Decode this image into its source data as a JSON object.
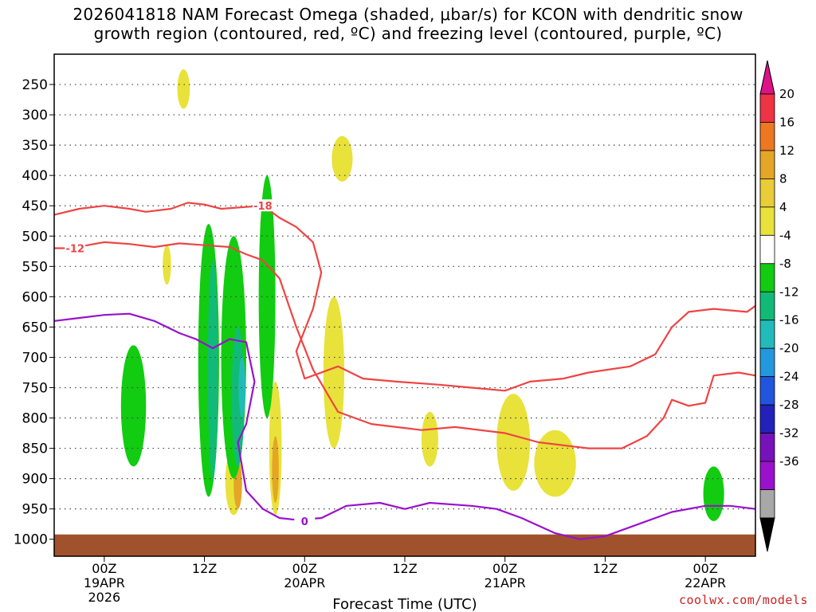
{
  "title_line1": "2026041818 NAM Forecast Omega (shaded, μbar/s) for KCON with dendritic snow",
  "title_line2": "growth region (contoured, red, ºC) and freezing level (contoured, purple, ºC)",
  "credit": "coolwx.com/models",
  "chart_data": {
    "type": "heatmap",
    "xlabel": "Forecast Time (UTC)",
    "ylabel": "",
    "y_axis": {
      "reversed": true,
      "ticks": [
        250,
        300,
        350,
        400,
        450,
        500,
        550,
        600,
        650,
        700,
        750,
        800,
        850,
        900,
        950,
        1000
      ]
    },
    "x_axis": {
      "start_hour": -6,
      "end_hour": 78,
      "ticks": [
        {
          "hour": 0,
          "labels": [
            "00Z",
            "19APR",
            "2026"
          ]
        },
        {
          "hour": 12,
          "labels": [
            "12Z"
          ]
        },
        {
          "hour": 24,
          "labels": [
            "00Z",
            "20APR"
          ]
        },
        {
          "hour": 36,
          "labels": [
            "12Z"
          ]
        },
        {
          "hour": 48,
          "labels": [
            "00Z",
            "21APR"
          ]
        },
        {
          "hour": 60,
          "labels": [
            "12Z"
          ]
        },
        {
          "hour": 72,
          "labels": [
            "00Z",
            "22APR"
          ]
        }
      ]
    },
    "grid": true,
    "colorbar": {
      "labels": [
        "20",
        "16",
        "12",
        "8",
        "4",
        "-4",
        "-8",
        "-12",
        "-16",
        "-20",
        "-24",
        "-28",
        "-32",
        "-36"
      ],
      "colors": [
        "#ee3344",
        "#ee7722",
        "#e5a526",
        "#e8cc38",
        "#e8e23a",
        "#ffffff",
        "#11cc11",
        "#11bb77",
        "#22bbbb",
        "#2299dd",
        "#2255dd",
        "#2222bb",
        "#7711bb",
        "#9911cc",
        "#a8a8a8"
      ],
      "top_color": "#dd1188",
      "bottom_color": "#000000"
    },
    "omega_regions": [
      {
        "value": 4,
        "hour": 9.5,
        "p_top": 225,
        "p_bottom": 290,
        "width_h": 1.5
      },
      {
        "value": 4,
        "hour": 28.5,
        "p_top": 335,
        "p_bottom": 410,
        "width_h": 2.5
      },
      {
        "value": 4,
        "hour": 7.5,
        "p_top": 515,
        "p_bottom": 580,
        "width_h": 1.0
      },
      {
        "value": 4,
        "hour": 27.5,
        "p_top": 600,
        "p_bottom": 850,
        "width_h": 2.5
      },
      {
        "value": 4,
        "hour": 39,
        "p_top": 790,
        "p_bottom": 880,
        "width_h": 2.0
      },
      {
        "value": 4,
        "hour": 49,
        "p_top": 760,
        "p_bottom": 920,
        "width_h": 4.0
      },
      {
        "value": 4,
        "hour": 54,
        "p_top": 820,
        "p_bottom": 930,
        "width_h": 5.0
      },
      {
        "value": 4,
        "hour": 20.5,
        "p_top": 740,
        "p_bottom": 960,
        "width_h": 1.5
      },
      {
        "value": 4,
        "hour": 15.5,
        "p_top": 850,
        "p_bottom": 960,
        "width_h": 2.0
      },
      {
        "value": 8,
        "hour": 16,
        "p_top": 870,
        "p_bottom": 950,
        "width_h": 1.0
      },
      {
        "value": 8,
        "hour": 20.5,
        "p_top": 830,
        "p_bottom": 940,
        "width_h": 0.8
      },
      {
        "value": -4,
        "hour": 3.5,
        "p_top": 680,
        "p_bottom": 880,
        "width_h": 3.0
      },
      {
        "value": -4,
        "hour": 12.5,
        "p_top": 480,
        "p_bottom": 930,
        "width_h": 2.5
      },
      {
        "value": -4,
        "hour": 15.5,
        "p_top": 500,
        "p_bottom": 900,
        "width_h": 3.0
      },
      {
        "value": -4,
        "hour": 19.5,
        "p_top": 400,
        "p_bottom": 800,
        "width_h": 2.0
      },
      {
        "value": -4,
        "hour": 73,
        "p_top": 880,
        "p_bottom": 970,
        "width_h": 2.5
      },
      {
        "value": -8,
        "hour": 13,
        "p_top": 540,
        "p_bottom": 900,
        "width_h": 1.2
      },
      {
        "value": -8,
        "hour": 16,
        "p_top": 650,
        "p_bottom": 880,
        "width_h": 1.5
      },
      {
        "value": -12,
        "hour": 16.5,
        "p_top": 700,
        "p_bottom": 800,
        "width_h": 0.8
      }
    ],
    "contours": [
      {
        "name": "-18",
        "color": "#ee4444",
        "label_hour": 19,
        "label_p": 450,
        "points": [
          [
            -6,
            465
          ],
          [
            -3,
            455
          ],
          [
            0,
            450
          ],
          [
            3,
            455
          ],
          [
            5,
            460
          ],
          [
            8,
            455
          ],
          [
            10,
            445
          ],
          [
            12,
            448
          ],
          [
            14,
            455
          ],
          [
            17,
            452
          ],
          [
            19,
            450
          ],
          [
            21,
            470
          ],
          [
            23,
            485
          ],
          [
            25,
            510
          ],
          [
            26,
            560
          ],
          [
            25,
            620
          ],
          [
            23,
            690
          ],
          [
            24,
            735
          ],
          [
            28,
            715
          ],
          [
            31,
            735
          ],
          [
            35,
            740
          ],
          [
            40,
            745
          ],
          [
            44,
            750
          ],
          [
            48,
            755
          ],
          [
            51,
            740
          ],
          [
            55,
            735
          ],
          [
            58,
            725
          ],
          [
            63,
            715
          ],
          [
            66,
            695
          ],
          [
            68,
            650
          ],
          [
            70,
            625
          ],
          [
            73,
            620
          ],
          [
            77,
            625
          ],
          [
            78,
            615
          ]
        ]
      },
      {
        "name": "-12",
        "color": "#ee4444",
        "label_hour": -3.5,
        "label_p": 520,
        "points": [
          [
            -6,
            520
          ],
          [
            -4,
            520
          ],
          [
            -2,
            515
          ],
          [
            0,
            510
          ],
          [
            3,
            513
          ],
          [
            6,
            518
          ],
          [
            9,
            512
          ],
          [
            12,
            515
          ],
          [
            15,
            518
          ],
          [
            17,
            530
          ],
          [
            19,
            540
          ],
          [
            21,
            570
          ],
          [
            22,
            610
          ],
          [
            23,
            650
          ],
          [
            25,
            720
          ],
          [
            28,
            790
          ],
          [
            32,
            810
          ],
          [
            38,
            820
          ],
          [
            42,
            815
          ],
          [
            48,
            825
          ],
          [
            52,
            840
          ],
          [
            55,
            845
          ],
          [
            58,
            850
          ],
          [
            62,
            850
          ],
          [
            65,
            830
          ],
          [
            67,
            800
          ],
          [
            68,
            770
          ],
          [
            70,
            780
          ],
          [
            72,
            775
          ],
          [
            73,
            730
          ],
          [
            76,
            725
          ],
          [
            78,
            730
          ]
        ]
      },
      {
        "name": "0",
        "color": "#9911cc",
        "label_hour": 24,
        "label_p": 970,
        "points": [
          [
            -6,
            640
          ],
          [
            -3,
            635
          ],
          [
            0,
            630
          ],
          [
            3,
            628
          ],
          [
            6,
            640
          ],
          [
            9,
            660
          ],
          [
            11,
            670
          ],
          [
            13,
            685
          ],
          [
            15,
            670
          ],
          [
            17,
            675
          ],
          [
            18,
            740
          ],
          [
            17,
            810
          ],
          [
            16,
            840
          ],
          [
            17,
            920
          ],
          [
            19,
            950
          ],
          [
            21,
            965
          ],
          [
            23,
            968
          ],
          [
            26,
            965
          ],
          [
            29,
            945
          ],
          [
            33,
            940
          ],
          [
            36,
            950
          ],
          [
            39,
            940
          ],
          [
            44,
            945
          ],
          [
            47,
            950
          ],
          [
            50,
            965
          ],
          [
            54,
            990
          ],
          [
            57,
            1000
          ],
          [
            60,
            995
          ],
          [
            64,
            975
          ],
          [
            68,
            955
          ],
          [
            72,
            945
          ],
          [
            75,
            945
          ],
          [
            78,
            950
          ]
        ]
      }
    ]
  }
}
